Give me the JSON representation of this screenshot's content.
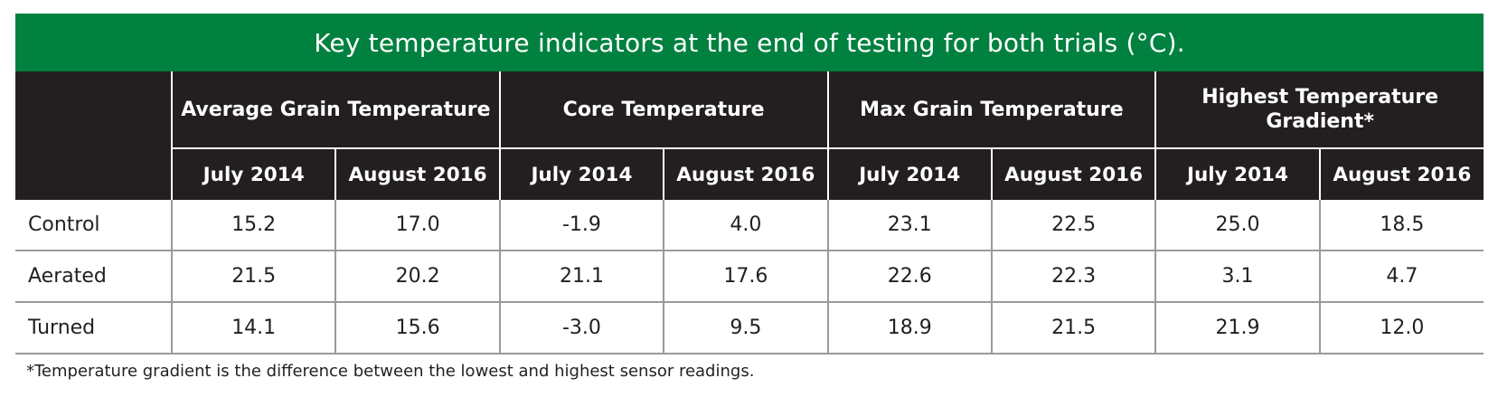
{
  "title": "Key temperature indicators at the end of testing for both trials (°C).",
  "groups": [
    "Average Grain Temperature",
    "Core Temperature",
    "Max Grain Temperature",
    "Highest Temperature Gradient*"
  ],
  "subheaders": [
    "July 2014",
    "August 2016"
  ],
  "rows": [
    {
      "label": "Control",
      "values": [
        "15.2",
        "17.0",
        "-1.9",
        "4.0",
        "23.1",
        "22.5",
        "25.0",
        "18.5"
      ]
    },
    {
      "label": "Aerated",
      "values": [
        "21.5",
        "20.2",
        "21.1",
        "17.6",
        "22.6",
        "22.3",
        "3.1",
        "4.7"
      ]
    },
    {
      "label": "Turned",
      "values": [
        "14.1",
        "15.6",
        "-3.0",
        "9.5",
        "18.9",
        "21.5",
        "21.9",
        "12.0"
      ]
    }
  ],
  "footnote": "*Temperature gradient is the difference between the lowest and highest sensor readings.",
  "colors": {
    "title_bar": "#00813f",
    "header_bg": "#231f20",
    "grid_line": "#9a9a9a"
  }
}
